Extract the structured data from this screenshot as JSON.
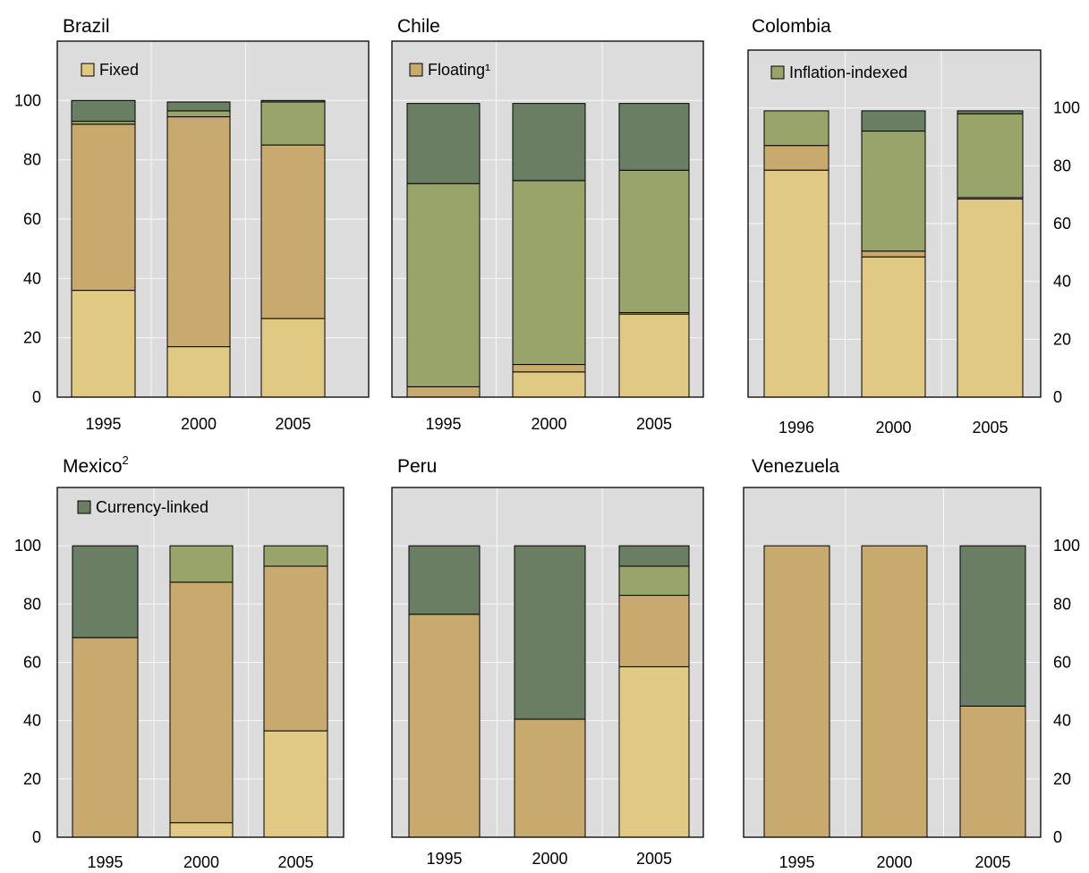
{
  "colors": {
    "Fixed": "#dfc983",
    "Floating": "#c8a96e",
    "Inflation-indexed": "#99a46a",
    "Currency-linked": "#6a7e63",
    "plot_background": "#dcdcdc",
    "grid": "#f4f4f4"
  },
  "chart_data": [
    {
      "type": "bar",
      "stacked": true,
      "title": "Brazil",
      "categories": [
        "1995",
        "2000",
        "2005"
      ],
      "ylim": [
        0,
        120
      ],
      "yticks": [
        "0",
        "20",
        "40",
        "60",
        "80",
        "100"
      ],
      "y_axis_side": "left",
      "grid": true,
      "legend_entry": {
        "key": "Fixed",
        "label": "Fixed",
        "placement": "top-left"
      },
      "series": [
        {
          "key": "Fixed",
          "values": [
            36,
            17,
            26.5
          ]
        },
        {
          "key": "Floating",
          "values": [
            56,
            77.5,
            58.5
          ]
        },
        {
          "key": "Inflation-indexed",
          "values": [
            1,
            2,
            14.5
          ]
        },
        {
          "key": "Currency-linked",
          "values": [
            7,
            3,
            0.5
          ]
        }
      ]
    },
    {
      "type": "bar",
      "stacked": true,
      "title": "Chile",
      "categories": [
        "1995",
        "2000",
        "2005"
      ],
      "ylim": [
        0,
        120
      ],
      "yticks": [],
      "y_axis_side": "none",
      "grid": true,
      "legend_entry": {
        "key": "Floating",
        "label": "Floating¹",
        "placement": "top-left"
      },
      "series": [
        {
          "key": "Fixed",
          "values": [
            0,
            8.5,
            28
          ]
        },
        {
          "key": "Floating",
          "values": [
            3.5,
            2.5,
            0.5
          ]
        },
        {
          "key": "Inflation-indexed",
          "values": [
            68.5,
            62,
            48
          ]
        },
        {
          "key": "Currency-linked",
          "values": [
            27,
            26,
            22.5
          ]
        }
      ]
    },
    {
      "type": "bar",
      "stacked": true,
      "title": "Colombia",
      "categories": [
        "1996",
        "2000",
        "2005"
      ],
      "ylim": [
        0,
        120
      ],
      "yticks": [
        "0",
        "20",
        "40",
        "60",
        "80",
        "100"
      ],
      "y_axis_side": "right",
      "grid": true,
      "legend_entry": {
        "key": "Inflation-indexed",
        "label": "Inflation-indexed",
        "placement": "top-left"
      },
      "series": [
        {
          "key": "Fixed",
          "values": [
            78.5,
            48.5,
            68.5
          ]
        },
        {
          "key": "Floating",
          "values": [
            8.5,
            2,
            0.5
          ]
        },
        {
          "key": "Inflation-indexed",
          "values": [
            12,
            41.5,
            29
          ]
        },
        {
          "key": "Currency-linked",
          "values": [
            0,
            7,
            1
          ]
        }
      ]
    },
    {
      "type": "bar",
      "stacked": true,
      "title": "Mexico",
      "title_superscript": "2",
      "categories": [
        "1995",
        "2000",
        "2005"
      ],
      "ylim": [
        0,
        120
      ],
      "yticks": [
        "0",
        "20",
        "40",
        "60",
        "80",
        "100"
      ],
      "y_axis_side": "left",
      "grid": true,
      "legend_entry": {
        "key": "Currency-linked",
        "label": "Currency-linked",
        "placement": "top-left"
      },
      "series": [
        {
          "key": "Fixed",
          "values": [
            0,
            5,
            36.5
          ]
        },
        {
          "key": "Floating",
          "values": [
            68.5,
            82.5,
            56.5
          ]
        },
        {
          "key": "Inflation-indexed",
          "values": [
            0,
            12.5,
            7
          ]
        },
        {
          "key": "Currency-linked",
          "values": [
            31.5,
            0,
            0
          ]
        }
      ]
    },
    {
      "type": "bar",
      "stacked": true,
      "title": "Peru",
      "categories": [
        "1995",
        "2000",
        "2005"
      ],
      "ylim": [
        0,
        120
      ],
      "yticks": [],
      "y_axis_side": "none",
      "grid": true,
      "series": [
        {
          "key": "Fixed",
          "values": [
            0,
            0,
            58.5
          ]
        },
        {
          "key": "Floating",
          "values": [
            76.5,
            40.5,
            24.5
          ]
        },
        {
          "key": "Inflation-indexed",
          "values": [
            0,
            0,
            10
          ]
        },
        {
          "key": "Currency-linked",
          "values": [
            23.5,
            59.5,
            7
          ]
        }
      ]
    },
    {
      "type": "bar",
      "stacked": true,
      "title": "Venezuela",
      "categories": [
        "1995",
        "2000",
        "2005"
      ],
      "ylim": [
        0,
        120
      ],
      "yticks": [
        "0",
        "20",
        "40",
        "60",
        "80",
        "100"
      ],
      "y_axis_side": "right",
      "grid": true,
      "series": [
        {
          "key": "Fixed",
          "values": [
            0,
            0,
            0
          ]
        },
        {
          "key": "Floating",
          "values": [
            100,
            100,
            45
          ]
        },
        {
          "key": "Inflation-indexed",
          "values": [
            0,
            0,
            0
          ]
        },
        {
          "key": "Currency-linked",
          "values": [
            0,
            0,
            55
          ]
        }
      ]
    }
  ]
}
